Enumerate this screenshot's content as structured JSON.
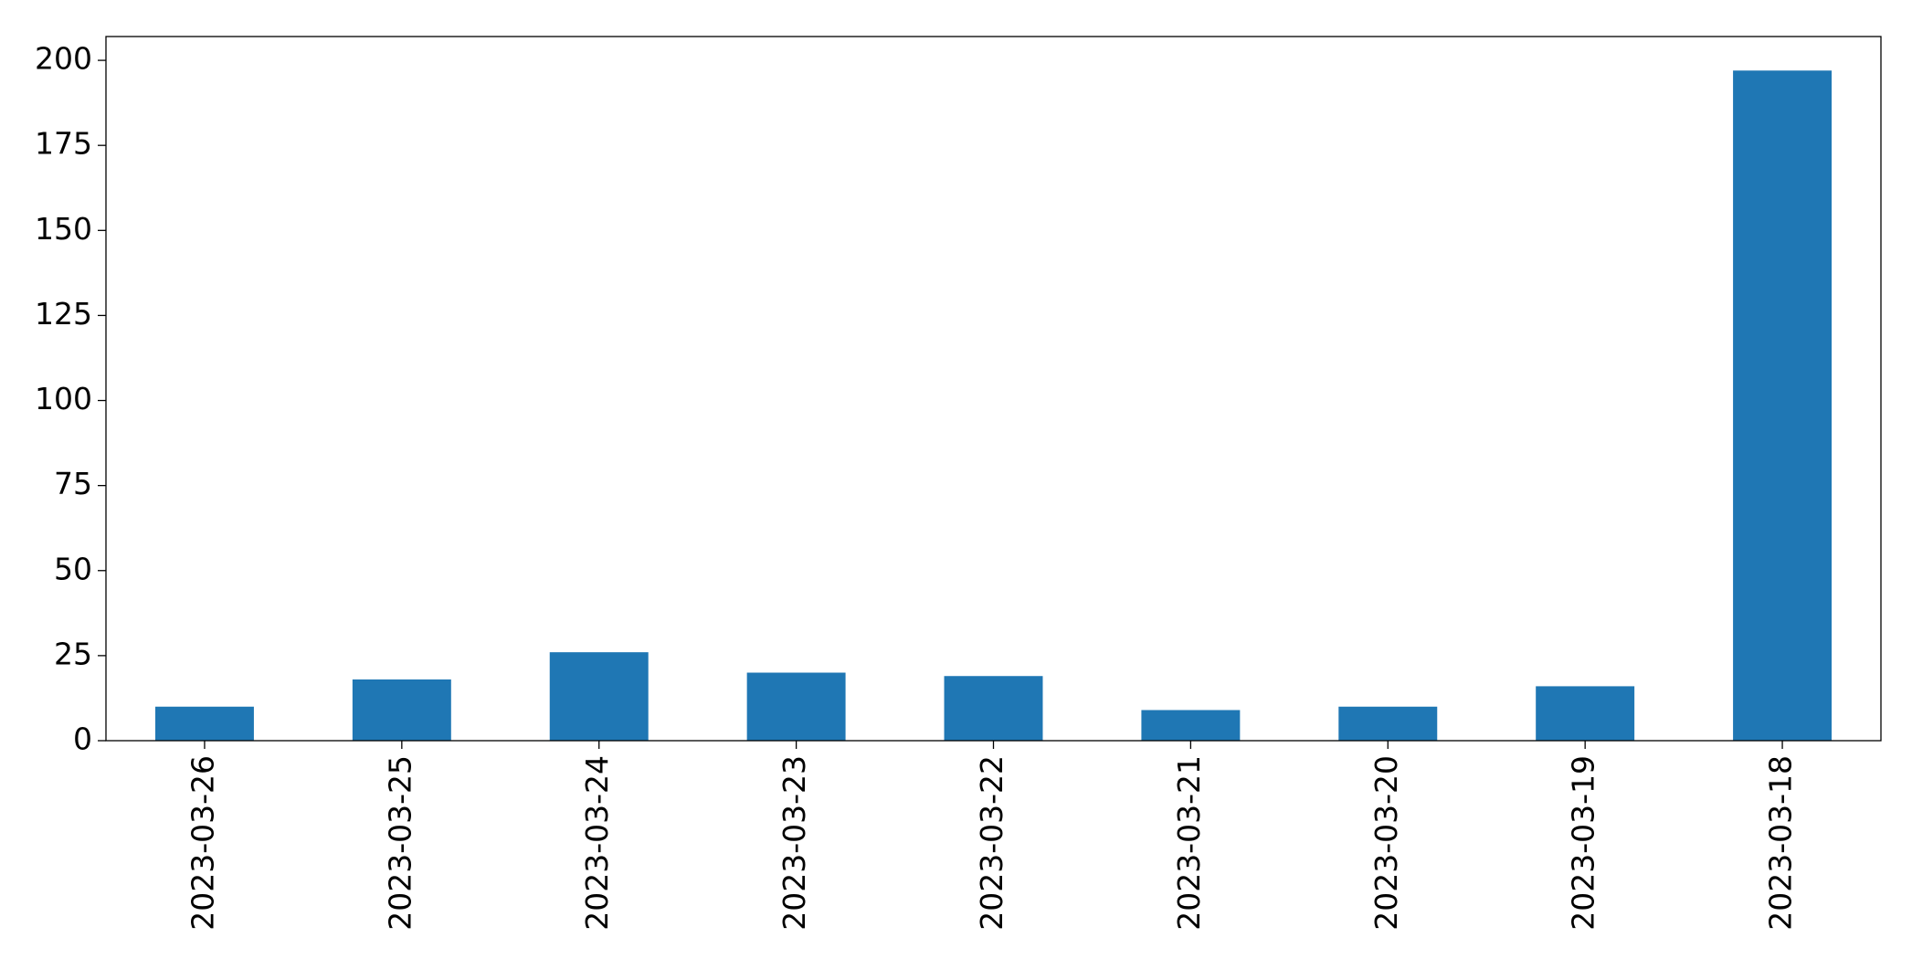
{
  "chart_data": {
    "type": "bar",
    "title": "",
    "xlabel": "",
    "ylabel": "",
    "categories": [
      "2023-03-26",
      "2023-03-25",
      "2023-03-24",
      "2023-03-23",
      "2023-03-22",
      "2023-03-21",
      "2023-03-20",
      "2023-03-19",
      "2023-03-18"
    ],
    "values": [
      10,
      18,
      26,
      20,
      19,
      9,
      10,
      16,
      197
    ],
    "ylim": [
      0,
      207
    ],
    "yticks": [
      0,
      25,
      50,
      75,
      100,
      125,
      150,
      175,
      200
    ],
    "bar_color": "#1f77b4",
    "grid": false,
    "legend": "none"
  }
}
